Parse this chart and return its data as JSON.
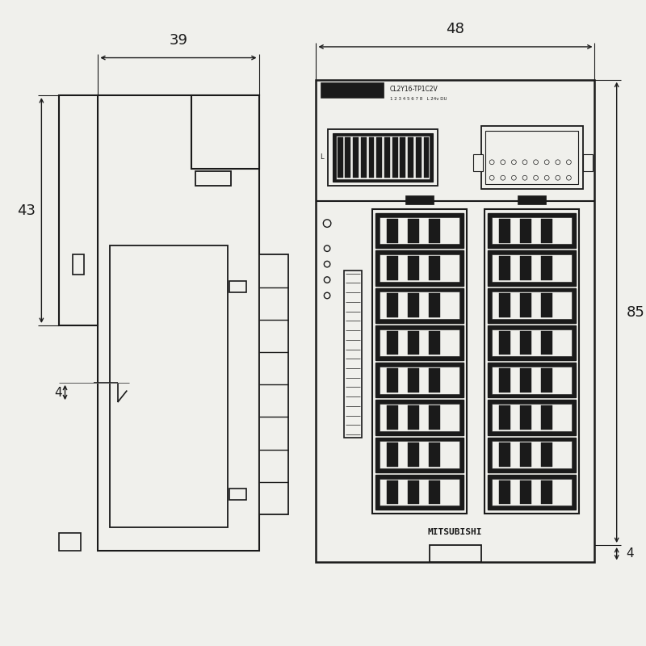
{
  "bg_color": "#f0f0ec",
  "line_color": "#1a1a1a",
  "dark_fill": "#1a1a1a",
  "mid_gray": "#888888",
  "light_gray": "#d0d0d0",
  "title_text": "MITSUBISHI",
  "dim_39": "39",
  "dim_48": "48",
  "dim_43": "43",
  "dim_85": "85",
  "dim_4_left": "4",
  "dim_4_right": "4"
}
